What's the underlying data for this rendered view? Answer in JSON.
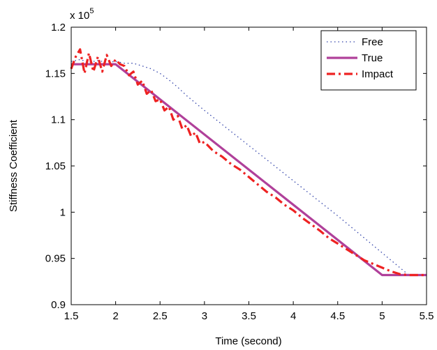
{
  "chart_data": {
    "type": "line",
    "xlabel": "Time (second)",
    "ylabel": "Stiffness Coefficient",
    "exponent_label": {
      "base": "x 10",
      "power": "5"
    },
    "xlim": [
      1.5,
      5.5
    ],
    "ylim": [
      0.9,
      1.2
    ],
    "xticks": [
      "1.5",
      "2",
      "2.5",
      "3",
      "3.5",
      "4",
      "4.5",
      "5",
      "5.5"
    ],
    "yticks": [
      "0.9",
      "0.95",
      "1",
      "1.05",
      "1.1",
      "1.15",
      "1.2"
    ],
    "grid": false,
    "legend_position": "top-right",
    "series": [
      {
        "name": "Free",
        "color": "#3344aa",
        "style": "dotted",
        "x": [
          1.5,
          1.6,
          1.7,
          1.8,
          1.9,
          2.0,
          2.1,
          2.2,
          2.3,
          2.4,
          2.5,
          2.6,
          2.7,
          2.8,
          2.9,
          3.0,
          3.5,
          4.0,
          4.5,
          5.0,
          5.2,
          5.3,
          5.5
        ],
        "y": [
          1.163,
          1.165,
          1.162,
          1.164,
          1.162,
          1.163,
          1.161,
          1.161,
          1.158,
          1.155,
          1.15,
          1.143,
          1.135,
          1.126,
          1.118,
          1.11,
          1.072,
          1.034,
          0.996,
          0.956,
          0.94,
          0.932,
          0.932
        ]
      },
      {
        "name": "True",
        "color": "#b0409a",
        "style": "solid",
        "x": [
          1.5,
          2.0,
          5.0,
          5.5
        ],
        "y": [
          1.16,
          1.16,
          0.932,
          0.932
        ]
      },
      {
        "name": "Impact",
        "color": "#ee2222",
        "style": "dashdot",
        "x": [
          1.5,
          1.55,
          1.6,
          1.65,
          1.7,
          1.75,
          1.8,
          1.85,
          1.9,
          1.95,
          2.0,
          2.05,
          2.1,
          2.15,
          2.2,
          2.25,
          2.3,
          2.35,
          2.4,
          2.45,
          2.5,
          2.55,
          2.6,
          2.65,
          2.7,
          2.75,
          2.8,
          2.85,
          2.9,
          2.95,
          3.0,
          3.1,
          3.2,
          3.3,
          3.4,
          3.5,
          3.6,
          3.7,
          3.8,
          3.9,
          4.0,
          4.1,
          4.2,
          4.3,
          4.4,
          4.5,
          4.6,
          4.7,
          4.8,
          4.9,
          5.0,
          5.1,
          5.2,
          5.3,
          5.5
        ],
        "y": [
          1.155,
          1.168,
          1.176,
          1.15,
          1.172,
          1.152,
          1.168,
          1.152,
          1.17,
          1.158,
          1.165,
          1.16,
          1.158,
          1.148,
          1.152,
          1.138,
          1.142,
          1.128,
          1.132,
          1.12,
          1.122,
          1.11,
          1.114,
          1.1,
          1.104,
          1.09,
          1.094,
          1.082,
          1.086,
          1.074,
          1.076,
          1.066,
          1.06,
          1.052,
          1.046,
          1.038,
          1.03,
          1.022,
          1.016,
          1.008,
          1.002,
          0.994,
          0.987,
          0.98,
          0.972,
          0.966,
          0.96,
          0.954,
          0.948,
          0.944,
          0.94,
          0.936,
          0.933,
          0.932,
          0.932
        ]
      }
    ]
  }
}
